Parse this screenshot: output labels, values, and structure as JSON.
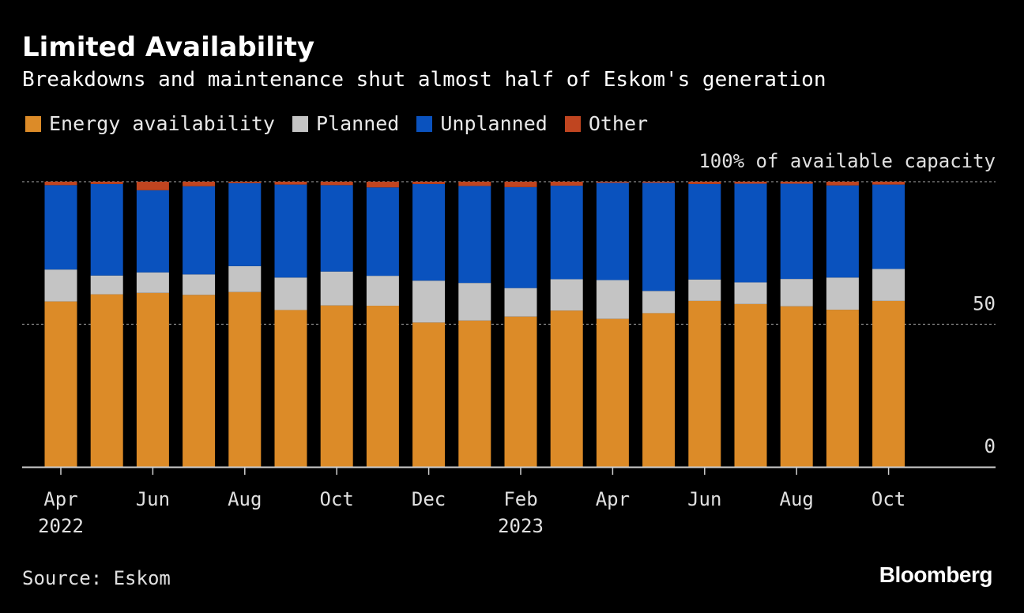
{
  "header": {
    "title": "Limited Availability",
    "subtitle": "Breakdowns and maintenance shut almost half of Eskom's generation"
  },
  "legend": [
    {
      "label": "Energy availability",
      "color": "#dc8b28"
    },
    {
      "label": "Planned",
      "color": "#c4c4c4"
    },
    {
      "label": "Unplanned",
      "color": "#0a52be"
    },
    {
      "label": "Other",
      "color": "#c04520"
    }
  ],
  "footer": {
    "source": "Source: Eskom",
    "brand": "Bloomberg"
  },
  "chart_data": {
    "type": "bar",
    "stacked": true,
    "title": "Limited Availability",
    "subtitle": "Breakdowns and maintenance shut almost half of Eskom's generation",
    "categories": [
      "Apr 2022",
      "May 2022",
      "Jun 2022",
      "Jul 2022",
      "Aug 2022",
      "Sep 2022",
      "Oct 2022",
      "Nov 2022",
      "Dec 2022",
      "Jan 2023",
      "Feb 2023",
      "Mar 2023",
      "Apr 2023",
      "May 2023",
      "Jun 2023",
      "Jul 2023",
      "Aug 2023",
      "Sep 2023",
      "Oct 2023"
    ],
    "series": [
      {
        "name": "Energy availability",
        "color": "#dc8b28",
        "values": [
          58,
          60.5,
          61,
          60.3,
          61.3,
          55,
          56.6,
          56.5,
          50.6,
          51.3,
          52.7,
          54.8,
          51.9,
          53.9,
          58.2,
          57.1,
          56.3,
          55.1,
          58.2
        ]
      },
      {
        "name": "Planned",
        "color": "#c4c4c4",
        "values": [
          11.2,
          6.6,
          7.2,
          7.2,
          9.1,
          11.4,
          11.9,
          10.5,
          14.7,
          13.2,
          10,
          11,
          13.6,
          7.8,
          7.5,
          7.6,
          9.6,
          11.3,
          11.2
        ]
      },
      {
        "name": "Unplanned",
        "color": "#0a52be",
        "values": [
          29.6,
          32.1,
          28.8,
          30.9,
          29.1,
          32.6,
          30.3,
          31,
          33.9,
          34,
          35.4,
          32.8,
          34.1,
          37.9,
          33.5,
          34.6,
          33.4,
          32.3,
          29.6
        ]
      },
      {
        "name": "Other",
        "color": "#c04520",
        "values": [
          1.2,
          0.8,
          3,
          1.6,
          0.5,
          1,
          1.2,
          2,
          0.8,
          1.5,
          1.9,
          1.4,
          0.4,
          0.4,
          0.8,
          0.7,
          0.7,
          1.3,
          1
        ]
      }
    ],
    "xticks": [
      {
        "index": 0,
        "label": "Apr",
        "sublabel": "2022"
      },
      {
        "index": 2,
        "label": "Jun",
        "sublabel": ""
      },
      {
        "index": 4,
        "label": "Aug",
        "sublabel": ""
      },
      {
        "index": 6,
        "label": "Oct",
        "sublabel": ""
      },
      {
        "index": 8,
        "label": "Dec",
        "sublabel": ""
      },
      {
        "index": 10,
        "label": "Feb",
        "sublabel": "2023"
      },
      {
        "index": 12,
        "label": "Apr",
        "sublabel": ""
      },
      {
        "index": 14,
        "label": "Jun",
        "sublabel": ""
      },
      {
        "index": 16,
        "label": "Aug",
        "sublabel": ""
      },
      {
        "index": 18,
        "label": "Oct",
        "sublabel": ""
      }
    ],
    "yticks": [
      {
        "value": 0,
        "label": "0"
      },
      {
        "value": 50,
        "label": "50"
      },
      {
        "value": 100,
        "label": "100% of available capacity"
      }
    ],
    "ylim": [
      0,
      100
    ],
    "grid": true,
    "legend_position": "top-left"
  }
}
